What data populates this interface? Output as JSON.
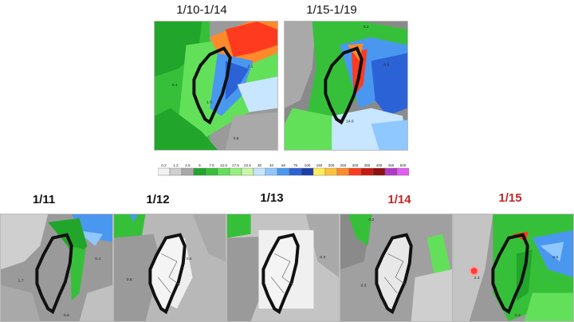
{
  "top_panels": [
    {
      "title": "1/10-1/14"
    },
    {
      "title": "1/15-1/19"
    }
  ],
  "colorbar": {
    "ticks": [
      "0.2",
      "1.2",
      "2.5",
      "5",
      "7.5",
      "12.5",
      "17.5",
      "22.5",
      "30",
      "40",
      "50",
      "75",
      "100",
      "150",
      "200",
      "250",
      "300",
      "350",
      "400",
      "450",
      "500"
    ],
    "colors": [
      "#f2f2f2",
      "#cfcfcf",
      "#a9a9a9",
      "#22a52b",
      "#36c03a",
      "#62e05a",
      "#96f07d",
      "#c8f7a5",
      "#c8e6ff",
      "#8fc7ff",
      "#4a97f0",
      "#2b63d6",
      "#1f3fa8",
      "#ffee58",
      "#ffc43a",
      "#ff8a2b",
      "#ff3b1f",
      "#c61a12",
      "#8e1010",
      "#b039c8",
      "#e05ff0"
    ]
  },
  "bottom_panels": [
    {
      "title": "1/11",
      "color": "#111111"
    },
    {
      "title": "1/12",
      "color": "#111111"
    },
    {
      "title": "1/13",
      "color": "#111111"
    },
    {
      "title": "1/14",
      "color": "#c0282a"
    },
    {
      "title": "1/15",
      "color": "#c0282a"
    }
  ],
  "map_labels": {
    "top_left": [
      "0.4",
      "2.1",
      "1.5",
      "0.6"
    ],
    "top_right": [
      "8.6",
      "14.6",
      "6.2"
    ],
    "b1": [
      "0.4",
      "1.7",
      "0.6"
    ],
    "b2": [
      "0.4",
      "0.5"
    ],
    "b3": [
      "0.3"
    ],
    "b4": [
      "0.2",
      "0.3"
    ],
    "b5": [
      "8.5",
      "2.3",
      "0.2"
    ]
  }
}
